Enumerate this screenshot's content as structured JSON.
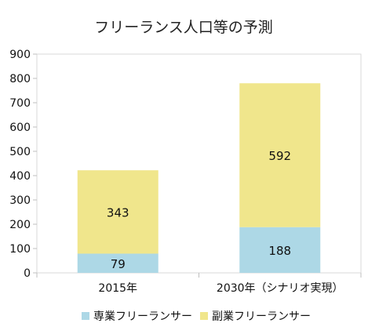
{
  "chart_data": {
    "type": "bar",
    "stacked": true,
    "title": "フリーランス人口等の予測",
    "categories": [
      "2015年",
      "2030年（シナリオ実現）"
    ],
    "series": [
      {
        "name": "専業フリーランサー",
        "values": [
          79,
          188
        ],
        "color": "#add8e6"
      },
      {
        "name": "副業フリーランサー",
        "values": [
          343,
          592
        ],
        "color": "#f0e68c"
      }
    ],
    "ylim": [
      0,
      900
    ],
    "yticks": [
      0,
      100,
      200,
      300,
      400,
      500,
      600,
      700,
      800,
      900
    ],
    "grid": false,
    "legend_position": "bottom"
  }
}
